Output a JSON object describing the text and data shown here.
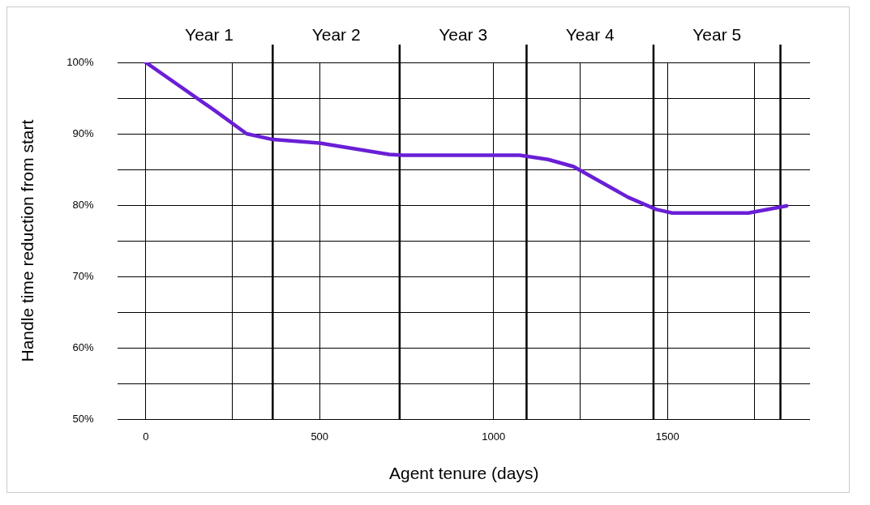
{
  "chart_data": {
    "type": "line",
    "xlabel": "Agent tenure (days)",
    "ylabel": "Handle time reduction from start",
    "x": [
      0,
      200,
      290,
      365,
      500,
      700,
      740,
      1075,
      1157,
      1230,
      1387,
      1468,
      1514,
      1733,
      1843
    ],
    "series": [
      {
        "color": "#6a1fd6",
        "values": [
          100,
          93.2,
          90,
          89.2,
          88.7,
          87.1,
          87,
          87,
          86.4,
          85.4,
          81.1,
          79.4,
          78.9,
          78.9,
          79.9
        ]
      }
    ],
    "xlim": [
      -80,
      1910
    ],
    "xticks": [
      0,
      {
        "value": 250,
        "label": null
      },
      500,
      1000,
      {
        "value": 1250,
        "label": null
      },
      1500,
      {
        "value": 1750,
        "label": null
      }
    ],
    "annotations": [
      "Year 1",
      "Year 2",
      "Year 3",
      "Year 4",
      "Year 5"
    ],
    "ylim": [
      50,
      100
    ],
    "yticks": [
      {
        "value": 50,
        "label": "50%"
      },
      {
        "value": 55,
        "label": null
      },
      {
        "value": 60,
        "label": "60%"
      },
      {
        "value": 65,
        "label": null
      },
      {
        "value": 70,
        "label": "70%"
      },
      {
        "value": 75,
        "label": null
      },
      {
        "value": 80,
        "label": "80%"
      },
      {
        "value": 85,
        "label": null
      },
      {
        "value": 90,
        "label": "90%"
      },
      {
        "value": 95,
        "label": null
      },
      {
        "value": 100,
        "label": "100%"
      }
    ],
    "ref_lines": [
      {
        "axis": "x",
        "value": 365,
        "label": null
      },
      {
        "axis": "x",
        "value": 730,
        "label": null
      },
      {
        "axis": "x",
        "value": 1095,
        "label": null
      },
      {
        "axis": "x",
        "value": 1460,
        "label": null
      },
      {
        "axis": "x",
        "value": 1825,
        "label": null
      }
    ],
    "grid": true,
    "legend": false,
    "marker": "none",
    "line_style": "solid"
  }
}
